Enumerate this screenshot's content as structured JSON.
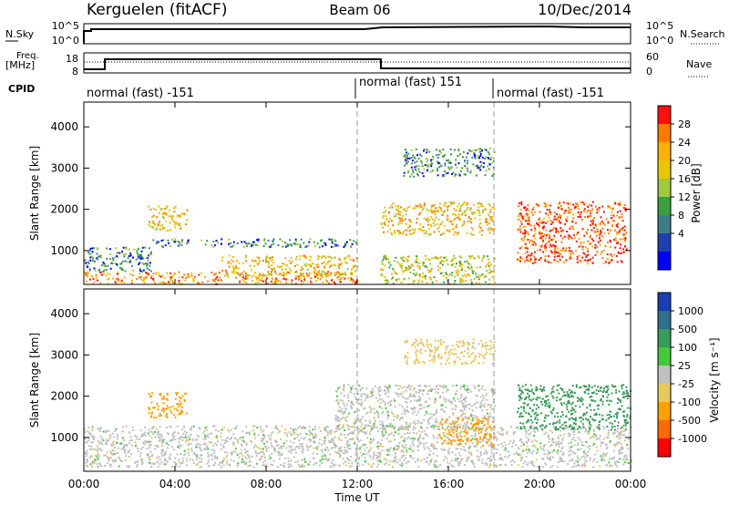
{
  "header": {
    "station": "Kerguelen (fitACF)",
    "beam": "Beam 06",
    "date": "10/Dec/2014"
  },
  "top_panels": {
    "nsky_label": "N.Sky",
    "nsearch_label": "N.Search",
    "nsky_ticks": [
      "10^5",
      "10^0"
    ],
    "freq_label_1": "Freq.",
    "freq_label_2": "[MHz]",
    "freq_ticks": [
      "18",
      "8"
    ],
    "nave_label": "Nave",
    "nave_ticks": [
      "60",
      "0"
    ],
    "cpid_label": "CPID",
    "cpid_segments": [
      {
        "label": "normal (fast) -151",
        "start": "00:00",
        "end": "12:00"
      },
      {
        "label": "normal (fast) 151",
        "start": "12:00",
        "end": "18:00"
      },
      {
        "label": "normal (fast) -151",
        "start": "18:00",
        "end": "24:00"
      }
    ]
  },
  "power_colorbar": {
    "title": "Power [dB]",
    "ticks": [
      "28",
      "24",
      "20",
      "16",
      "12",
      "8",
      "4"
    ],
    "colors": [
      "#ff1010",
      "#ff7a00",
      "#ffb000",
      "#e8c800",
      "#a0c840",
      "#3c9e3c",
      "#3f7d8a",
      "#1f3fb0",
      "#0000ff"
    ]
  },
  "velocity_colorbar": {
    "title": "Velocity [m s⁻¹]",
    "ticks": [
      "1000",
      "500",
      "100",
      "25",
      "-25",
      "-100",
      "-500",
      "-1000"
    ],
    "colors": [
      "#1a3fb0",
      "#2f6f8a",
      "#3a9a5a",
      "#44c83c",
      "#c0c0c0",
      "#e8c860",
      "#ffa000",
      "#ff6a00",
      "#ff0000"
    ]
  },
  "chart_data": [
    {
      "type": "heatmap",
      "panel": "power",
      "ylabel": "Slant Range [km]",
      "xlabel": "Time UT",
      "x_ticks": [
        "00:00",
        "04:00",
        "08:00",
        "12:00",
        "16:00",
        "20:00",
        "00:00"
      ],
      "y_ticks": [
        "4000",
        "3000",
        "2000",
        "1000"
      ],
      "xlim_hours": [
        0,
        24
      ],
      "ylim_km": [
        180,
        4600
      ],
      "regions": [
        {
          "t0": 0.0,
          "t1": 12.0,
          "r0": 200,
          "r1": 500,
          "level": 24
        },
        {
          "t0": 0.0,
          "t1": 3.0,
          "r0": 500,
          "r1": 1100,
          "level": 8
        },
        {
          "t0": 2.8,
          "t1": 4.5,
          "r0": 1500,
          "r1": 2100,
          "level": 20
        },
        {
          "t0": 3.0,
          "t1": 12.0,
          "r0": 1100,
          "r1": 1300,
          "level": 8
        },
        {
          "t0": 6.0,
          "t1": 12.0,
          "r0": 400,
          "r1": 900,
          "level": 20
        },
        {
          "t0": 13.0,
          "t1": 18.0,
          "r0": 1400,
          "r1": 2200,
          "level": 20
        },
        {
          "t0": 13.0,
          "t1": 18.0,
          "r0": 200,
          "r1": 900,
          "level": 16
        },
        {
          "t0": 14.0,
          "t1": 18.0,
          "r0": 2800,
          "r1": 3500,
          "level": 8
        },
        {
          "t0": 19.0,
          "t1": 23.8,
          "r0": 700,
          "r1": 2200,
          "level": 28
        }
      ]
    },
    {
      "type": "heatmap",
      "panel": "velocity",
      "ylabel": "Slant Range [km]",
      "xlabel": "Time UT",
      "x_ticks": [
        "00:00",
        "04:00",
        "08:00",
        "12:00",
        "16:00",
        "20:00",
        "00:00"
      ],
      "y_ticks": [
        "4000",
        "3000",
        "2000",
        "1000"
      ],
      "xlim_hours": [
        0,
        24
      ],
      "ylim_km": [
        180,
        4600
      ],
      "regions": [
        {
          "t0": 0.0,
          "t1": 24.0,
          "r0": 300,
          "r1": 1300,
          "level": 0
        },
        {
          "t0": 2.8,
          "t1": 4.5,
          "r0": 1500,
          "r1": 2100,
          "level": -300
        },
        {
          "t0": 11.0,
          "t1": 18.0,
          "r0": 1200,
          "r1": 2300,
          "level": 0
        },
        {
          "t0": 15.5,
          "t1": 18.0,
          "r0": 800,
          "r1": 1500,
          "level": -300
        },
        {
          "t0": 14.0,
          "t1": 18.0,
          "r0": 2800,
          "r1": 3400,
          "level": -50
        },
        {
          "t0": 19.0,
          "t1": 24.0,
          "r0": 1200,
          "r1": 2300,
          "level": 300
        }
      ]
    }
  ]
}
